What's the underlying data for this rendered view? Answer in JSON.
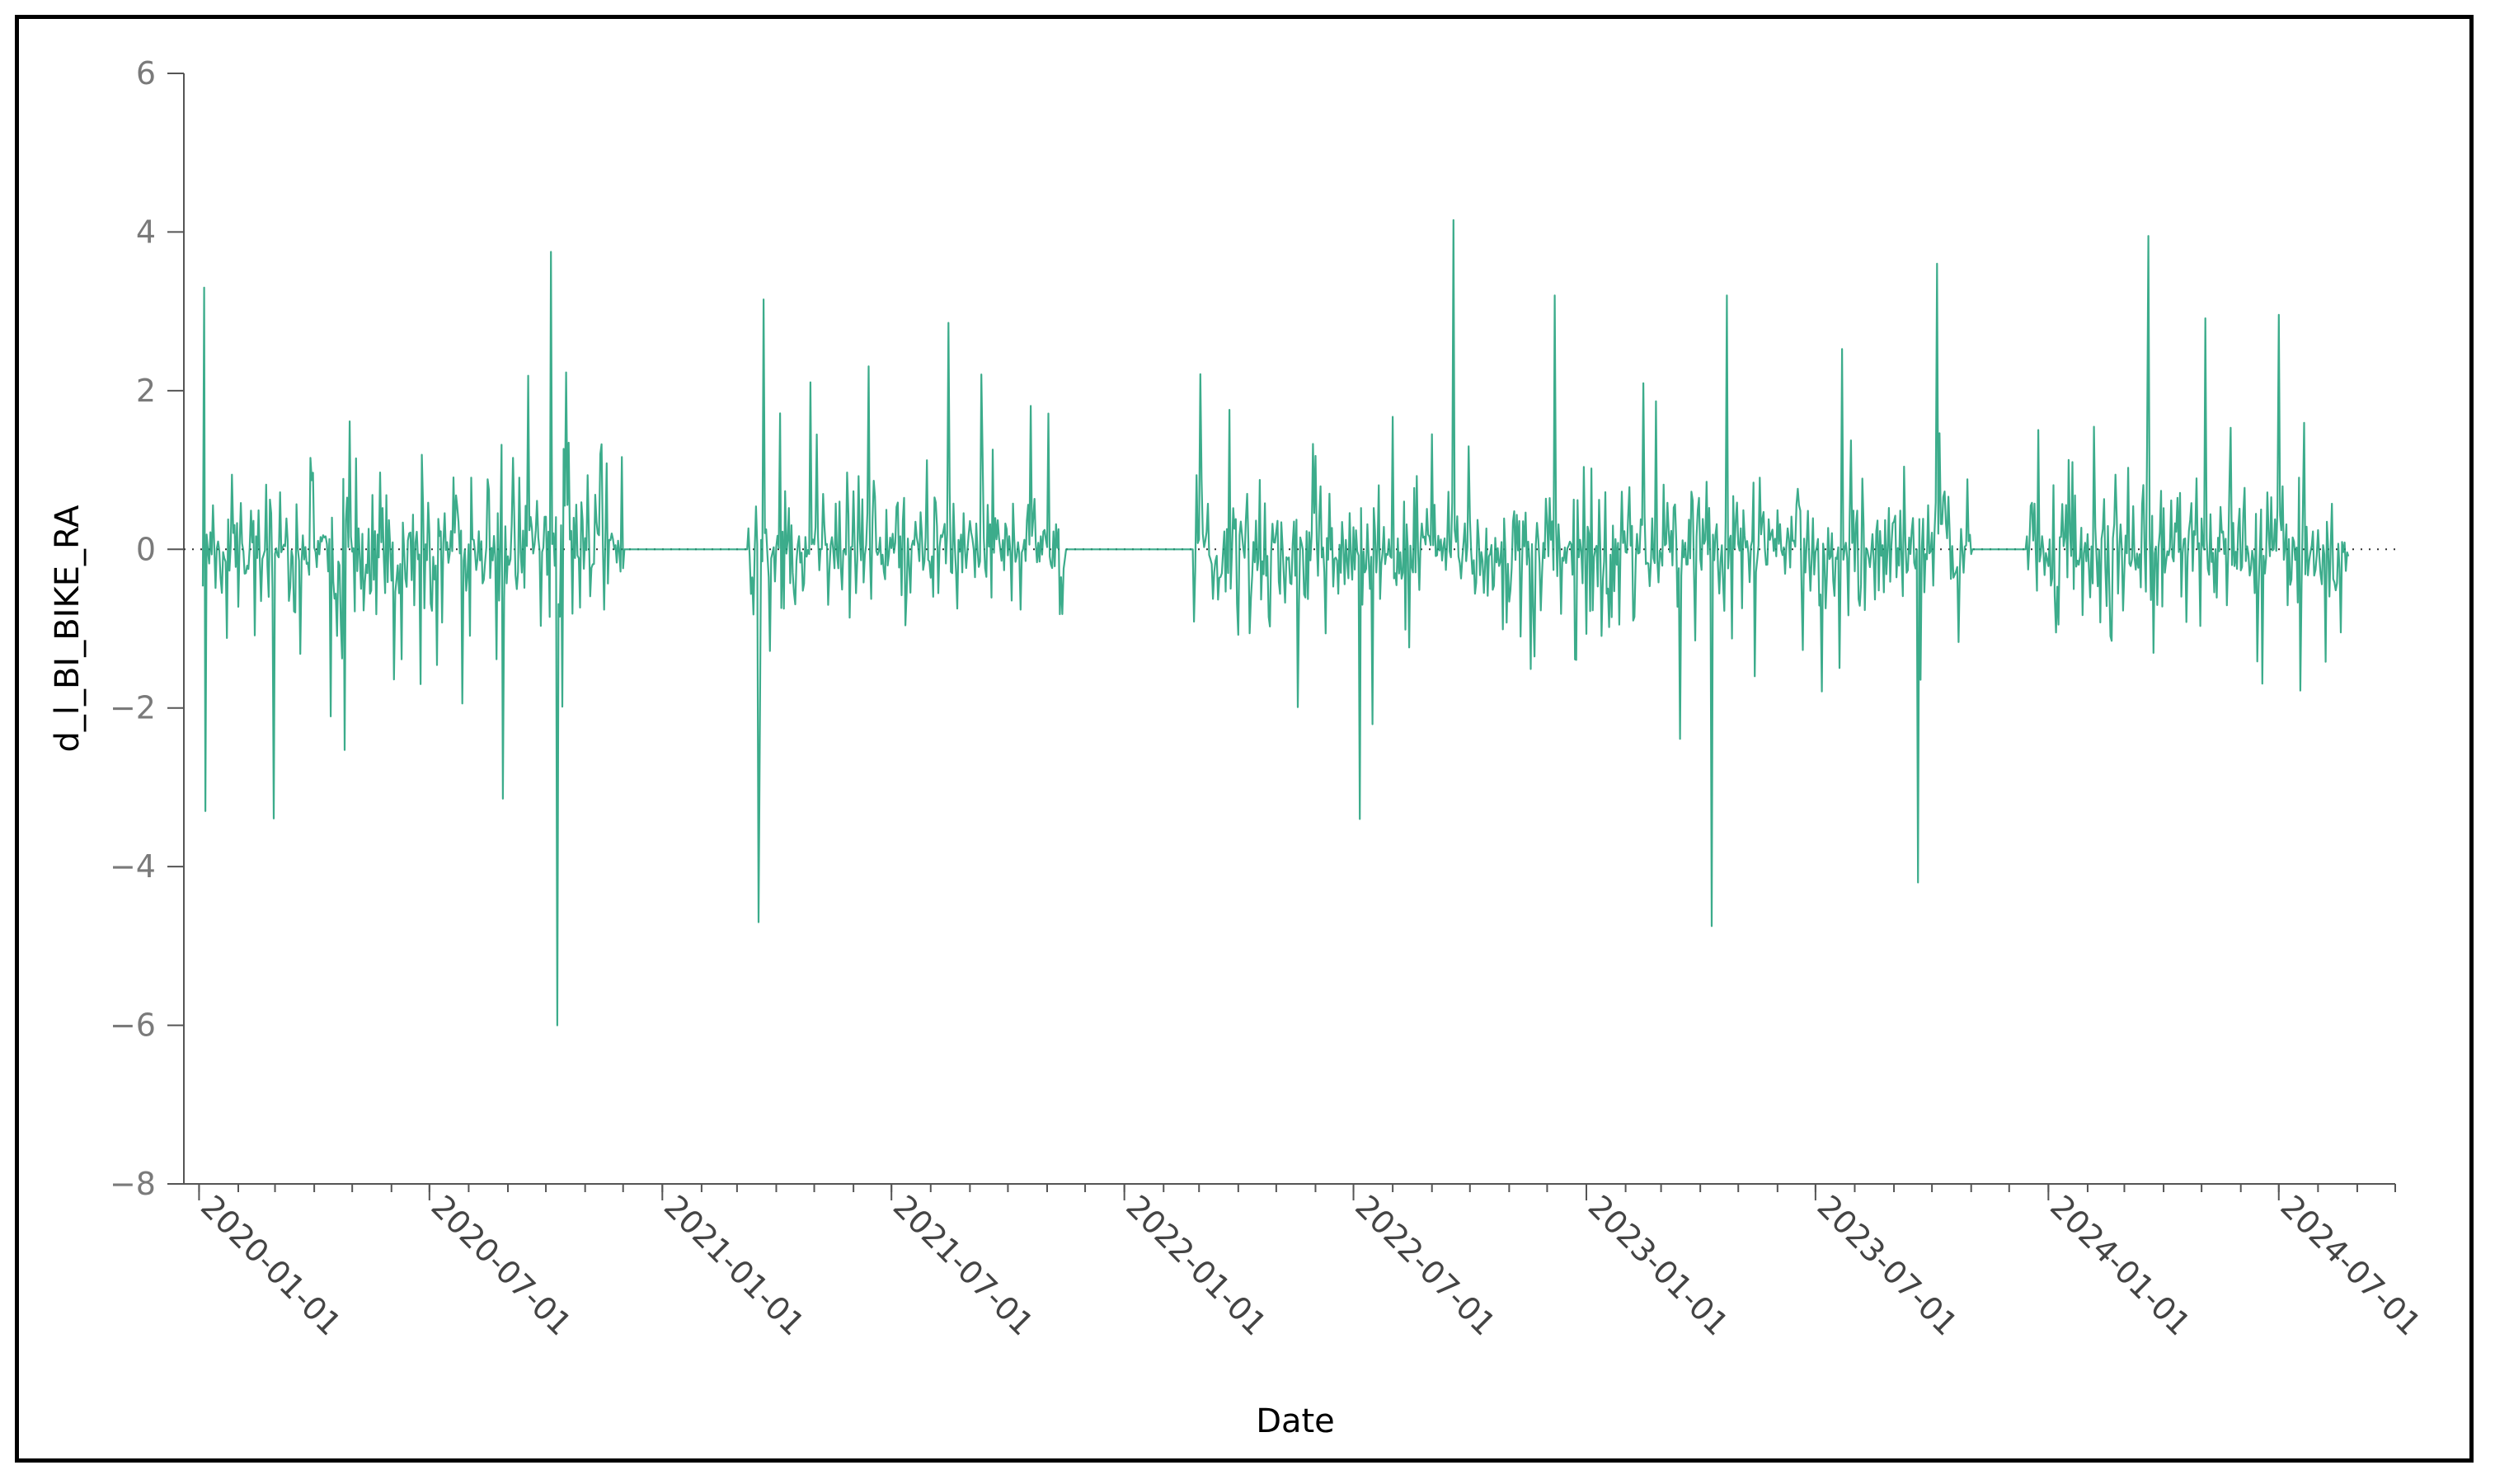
{
  "chart_data": {
    "type": "line",
    "title": "",
    "xlabel": "Date",
    "ylabel": "d_l_BI_BIKE_RA",
    "ylim": [
      -8,
      6
    ],
    "yticks": [
      6,
      4,
      2,
      0,
      -2,
      -4,
      -6,
      -8
    ],
    "ytick_labels": [
      "6",
      "4",
      "2",
      "0",
      "−2",
      "−4",
      "−6",
      "−8"
    ],
    "xlim": [
      "2019-12-20",
      "2024-10-01"
    ],
    "xticks": [
      "2020-01-01",
      "2020-07-01",
      "2021-01-01",
      "2021-07-01",
      "2022-01-01",
      "2022-07-01",
      "2023-01-01",
      "2023-07-01",
      "2024-01-01",
      "2024-07-01"
    ],
    "grid": false,
    "reference_line": {
      "y": 0,
      "style": "dotted"
    },
    "series": [
      {
        "color": "#1a9e77",
        "values_description_free": true,
        "active_periods": [
          {
            "start": "2020-01-04",
            "end": "2020-12-01"
          },
          {
            "start": "2021-03-10",
            "end": "2021-11-15"
          },
          {
            "start": "2022-02-25",
            "end": "2023-11-01"
          },
          {
            "start": "2023-12-15",
            "end": "2024-08-25"
          }
        ],
        "flat_periods": [
          {
            "start": "2020-12-01",
            "end": "2021-03-10"
          },
          {
            "start": "2021-11-15",
            "end": "2022-02-25"
          },
          {
            "start": "2023-11-01",
            "end": "2023-12-15"
          }
        ],
        "extremes": [
          {
            "x": "2020-01-05",
            "y": 3.3
          },
          {
            "x": "2020-01-06",
            "y": -3.3
          },
          {
            "x": "2020-10-05",
            "y": 3.75
          },
          {
            "x": "2020-10-10",
            "y": -6.0
          },
          {
            "x": "2021-03-18",
            "y": -4.7
          },
          {
            "x": "2021-03-22",
            "y": 3.15
          },
          {
            "x": "2022-09-18",
            "y": 4.15
          },
          {
            "x": "2023-04-10",
            "y": -4.75
          },
          {
            "x": "2023-09-20",
            "y": -4.2
          },
          {
            "x": "2023-10-05",
            "y": 3.6
          },
          {
            "x": "2024-03-20",
            "y": 3.95
          }
        ]
      }
    ]
  }
}
